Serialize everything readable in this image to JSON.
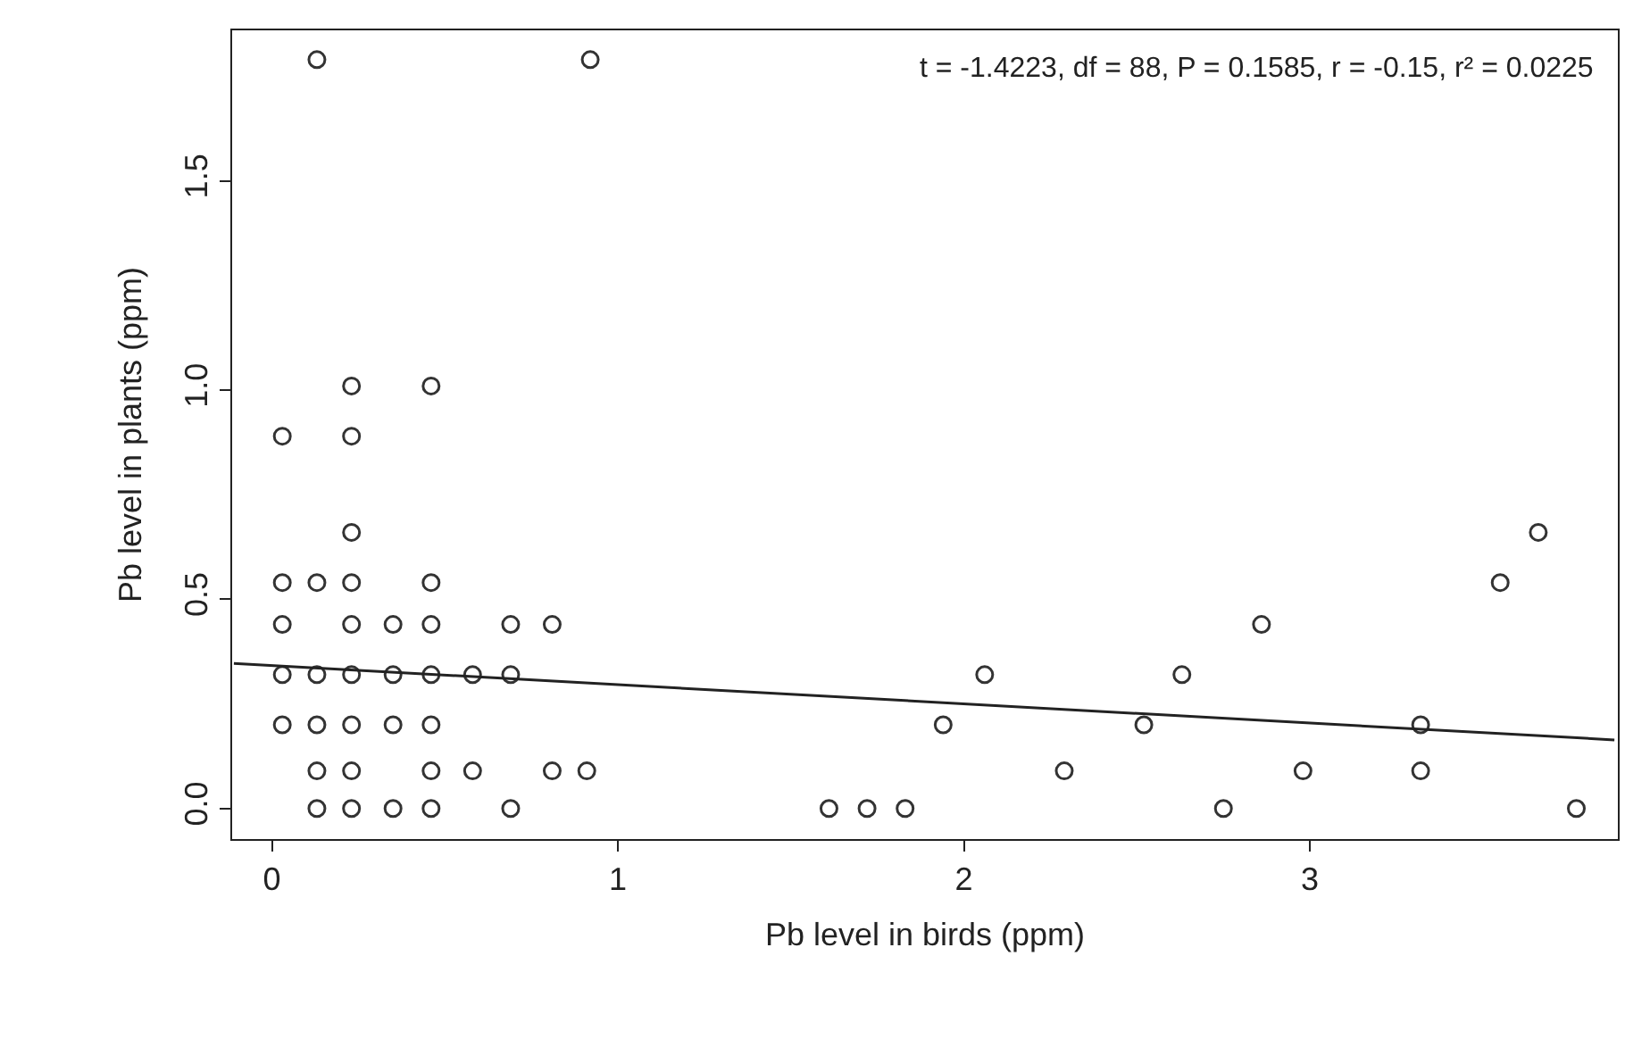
{
  "chart_data": {
    "type": "scatter",
    "xlabel": "Pb level in birds (ppm)",
    "ylabel": "Pb level in plants (ppm)",
    "annotations": [
      "t = -1.4223, df = 88, P = 0.1585, r = -0.15, r² = 0.0225"
    ],
    "xlim": [
      -0.115,
      3.89
    ],
    "ylim": [
      -0.073,
      1.86
    ],
    "xticks": [
      0,
      1,
      2,
      3
    ],
    "yticks": [
      {
        "value": 0,
        "label": "0.0"
      },
      0.5,
      {
        "value": 1,
        "label": "1.0"
      },
      1.5
    ],
    "marker": "circle",
    "series": [
      {
        "color": "#333333",
        "x": [
          0.13,
          0.92,
          0.23,
          0.46,
          0.03,
          0.23,
          0.23,
          0.03,
          0.13,
          0.23,
          0.46,
          0.03,
          0.23,
          0.35,
          0.46,
          0.69,
          0.81,
          0.03,
          0.13,
          0.23,
          0.35,
          0.46,
          0.58,
          0.69,
          0.03,
          0.13,
          0.23,
          0.35,
          0.46,
          0.13,
          0.23,
          0.46,
          0.58,
          0.81,
          0.91,
          0.13,
          0.23,
          0.35,
          0.46,
          0.69,
          1.61,
          1.72,
          1.83,
          1.94,
          2.06,
          2.29,
          2.52,
          2.63,
          2.75,
          2.86,
          2.98,
          3.32,
          3.32,
          3.55,
          3.66,
          3.77
        ],
        "values": [
          1.79,
          1.79,
          1.01,
          1.01,
          0.89,
          0.89,
          0.66,
          0.54,
          0.54,
          0.54,
          0.54,
          0.44,
          0.44,
          0.44,
          0.44,
          0.44,
          0.44,
          0.32,
          0.32,
          0.32,
          0.32,
          0.32,
          0.32,
          0.32,
          0.2,
          0.2,
          0.2,
          0.2,
          0.2,
          0.09,
          0.09,
          0.09,
          0.09,
          0.09,
          0.09,
          0,
          0,
          0,
          0,
          0,
          0,
          0,
          0,
          0.2,
          0.32,
          0.09,
          0.2,
          0.32,
          0,
          0.44,
          0.09,
          0.2,
          0.09,
          0.54,
          0.66,
          0
        ]
      },
      {
        "type": "line",
        "color": "#222222",
        "marker": "none",
        "line_style": "solid",
        "x": [
          -0.11,
          3.88
        ],
        "values": [
          0.347,
          0.164
        ]
      }
    ]
  }
}
